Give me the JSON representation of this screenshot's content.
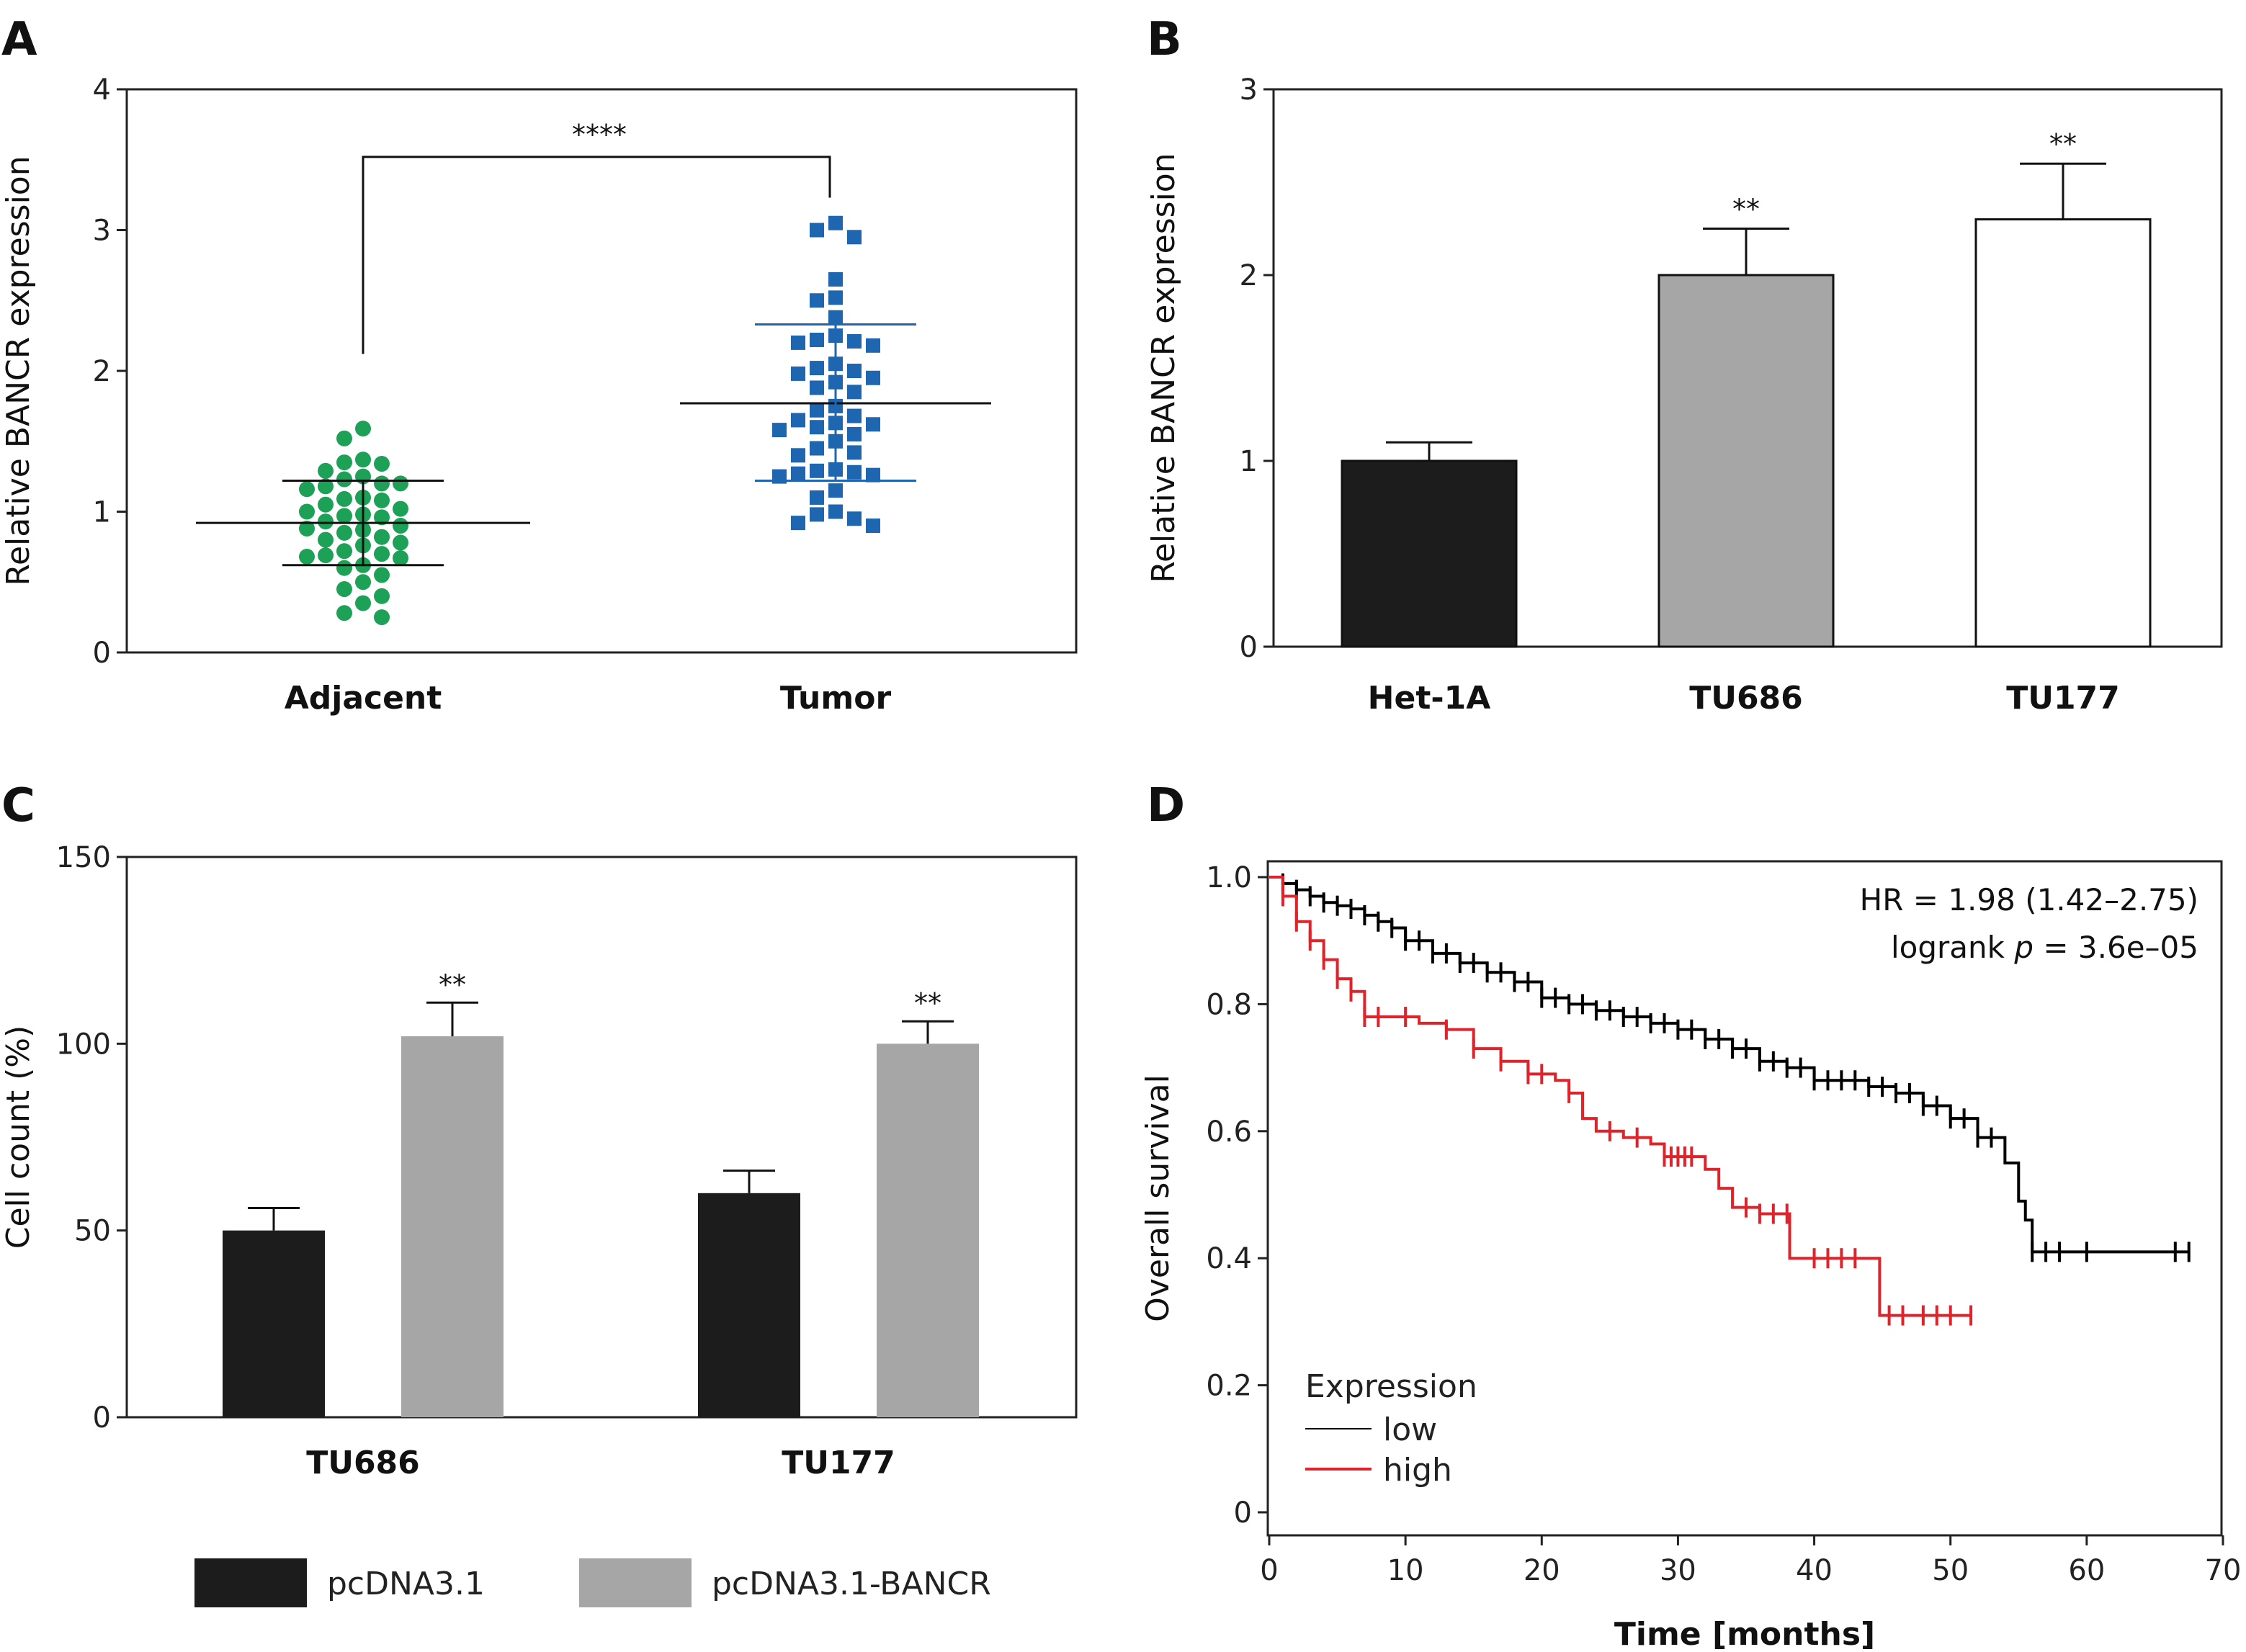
{
  "panels": {
    "a": {
      "letter": "A"
    },
    "b": {
      "letter": "B"
    },
    "c": {
      "letter": "C"
    },
    "d": {
      "letter": "D"
    }
  },
  "colors": {
    "green": "#1ca157",
    "blue": "#1f66b0",
    "black_bar": "#1c1c1c",
    "gray_bar": "#a6a6a6",
    "white_bar": "#ffffff",
    "low": "#000000",
    "high": "#e0232a"
  },
  "chart_data": [
    {
      "panel": "A",
      "type": "scatter",
      "ylabel": "Relative BANCR expression",
      "ylim": [
        0,
        4
      ],
      "yticks": [
        0,
        1,
        2,
        3,
        4
      ],
      "categories": [
        "Adjacent",
        "Tumor"
      ],
      "groups": [
        {
          "name": "Adjacent",
          "marker": "circle",
          "mean": 0.92,
          "sd_low": 0.62,
          "sd_high": 1.22,
          "values": [
            1.59,
            1.52,
            1.37,
            1.35,
            1.34,
            1.29,
            1.25,
            1.23,
            1.2,
            1.2,
            1.18,
            1.16,
            1.1,
            1.09,
            1.08,
            1.05,
            1.02,
            1.0,
            0.98,
            0.97,
            0.96,
            0.93,
            0.9,
            0.88,
            0.87,
            0.85,
            0.82,
            0.8,
            0.78,
            0.76,
            0.72,
            0.7,
            0.69,
            0.68,
            0.67,
            0.62,
            0.6,
            0.55,
            0.5,
            0.45,
            0.4,
            0.35,
            0.28,
            0.25
          ]
        },
        {
          "name": "Tumor",
          "marker": "square",
          "mean": 1.77,
          "sd_low": 1.22,
          "sd_high": 2.33,
          "values": [
            3.05,
            3.0,
            2.95,
            2.65,
            2.52,
            2.5,
            2.38,
            2.25,
            2.22,
            2.21,
            2.2,
            2.18,
            2.05,
            2.02,
            2.0,
            1.98,
            1.95,
            1.92,
            1.88,
            1.85,
            1.75,
            1.72,
            1.68,
            1.65,
            1.63,
            1.62,
            1.6,
            1.58,
            1.55,
            1.5,
            1.45,
            1.42,
            1.4,
            1.3,
            1.29,
            1.28,
            1.27,
            1.26,
            1.25,
            1.15,
            1.1,
            1.0,
            0.98,
            0.95,
            0.92,
            0.9
          ]
        }
      ],
      "annotation": "****"
    },
    {
      "panel": "B",
      "type": "bar",
      "ylabel": "Relative BANCR expression",
      "ylim": [
        0,
        3
      ],
      "yticks": [
        0,
        1,
        2,
        3
      ],
      "categories": [
        "Het-1A",
        "TU686",
        "TU177"
      ],
      "values": [
        1.0,
        2.0,
        2.3
      ],
      "errors": [
        0.1,
        0.25,
        0.3
      ],
      "fills": [
        "black_bar",
        "gray_bar",
        "white_bar"
      ],
      "significance": [
        "",
        "**",
        "**"
      ]
    },
    {
      "panel": "C",
      "type": "bar",
      "ylabel": "Cell count (%)",
      "ylim": [
        0,
        150
      ],
      "yticks": [
        0,
        50,
        100,
        150
      ],
      "categories": [
        "TU686",
        "TU177"
      ],
      "series": [
        {
          "name": "pcDNA3.1",
          "values": [
            50,
            60
          ],
          "errors": [
            6,
            6
          ],
          "fill": "black_bar",
          "significance": [
            "",
            ""
          ]
        },
        {
          "name": "pcDNA3.1-BANCR",
          "values": [
            102,
            100
          ],
          "errors": [
            9,
            6
          ],
          "fill": "gray_bar",
          "significance": [
            "**",
            "**"
          ]
        }
      ]
    },
    {
      "panel": "D",
      "type": "line",
      "ylabel": "Overall survival",
      "xlabel": "Time [months]",
      "xlim": [
        0,
        70
      ],
      "ylim": [
        0,
        1.0
      ],
      "xticks": [
        0,
        10,
        20,
        30,
        40,
        50,
        60,
        70
      ],
      "yticks": [
        0,
        0.2,
        0.4,
        0.6,
        0.8,
        1.0
      ],
      "ytick_labels": [
        "0",
        "0.2",
        "0.4",
        "0.6",
        "0.8",
        "1.0"
      ],
      "annotation_hr": "HR = 1.98 (1.42–2.75)",
      "annotation_logrank_prefix": "logrank ",
      "annotation_logrank_p": "p",
      "annotation_logrank_suffix": " = 3.6e–05",
      "legend_title": "Expression",
      "legend_position": "bottom-left",
      "series": [
        {
          "name": "low",
          "color": "low",
          "x": [
            0,
            1,
            2,
            3,
            4,
            5,
            6,
            7,
            8,
            9,
            10,
            12,
            14,
            16,
            18,
            20,
            22,
            24,
            26,
            28,
            30,
            32,
            34,
            36,
            38,
            40,
            42,
            44,
            46,
            48,
            50,
            52,
            54,
            55,
            55.5,
            56,
            60,
            67.5
          ],
          "y": [
            1.0,
            0.99,
            0.98,
            0.97,
            0.96,
            0.955,
            0.95,
            0.94,
            0.93,
            0.92,
            0.9,
            0.88,
            0.865,
            0.85,
            0.835,
            0.81,
            0.8,
            0.79,
            0.78,
            0.77,
            0.76,
            0.745,
            0.73,
            0.71,
            0.7,
            0.68,
            0.68,
            0.67,
            0.66,
            0.64,
            0.62,
            0.59,
            0.55,
            0.49,
            0.46,
            0.41,
            0.41,
            0.41
          ],
          "censor_x": [
            1,
            2,
            3,
            4,
            5,
            6,
            7,
            8,
            9,
            10,
            11,
            12,
            13,
            14,
            15,
            16,
            17,
            18,
            19,
            20,
            21,
            22,
            23,
            24,
            25,
            26,
            27,
            28,
            29,
            30,
            31,
            32,
            33,
            34,
            35,
            36,
            37,
            38,
            39,
            40,
            41,
            42,
            43,
            44,
            45,
            46,
            47,
            48,
            49,
            50,
            51,
            52,
            53,
            56,
            57,
            58,
            60,
            66.5,
            67.5
          ]
        },
        {
          "name": "high",
          "color": "high",
          "x": [
            0,
            1,
            2,
            3,
            4,
            5,
            6,
            7,
            9,
            11,
            13,
            15,
            17,
            19,
            21,
            22,
            23,
            24,
            26,
            28,
            29,
            30,
            31,
            32,
            33,
            34,
            36,
            38,
            38.2,
            41,
            43,
            44,
            44.8,
            47,
            51.5
          ],
          "y": [
            1.0,
            0.97,
            0.93,
            0.9,
            0.87,
            0.84,
            0.82,
            0.78,
            0.78,
            0.77,
            0.76,
            0.73,
            0.71,
            0.69,
            0.68,
            0.66,
            0.62,
            0.6,
            0.59,
            0.58,
            0.56,
            0.56,
            0.56,
            0.54,
            0.51,
            0.48,
            0.47,
            0.47,
            0.4,
            0.4,
            0.4,
            0.4,
            0.31,
            0.31,
            0.31
          ],
          "censor_x": [
            1,
            2,
            3,
            4,
            5,
            6,
            7,
            8,
            10,
            13,
            15,
            17,
            19,
            20,
            22,
            25,
            27,
            29,
            29.5,
            30,
            30.5,
            31,
            35,
            36,
            37,
            38,
            40,
            41,
            42,
            43,
            45.5,
            46.5,
            48,
            49,
            50,
            51.5
          ]
        }
      ]
    }
  ],
  "legend_c": {
    "items": [
      {
        "label": "pcDNA3.1",
        "fill": "black_bar"
      },
      {
        "label": "pcDNA3.1-BANCR",
        "fill": "gray_bar"
      }
    ]
  }
}
